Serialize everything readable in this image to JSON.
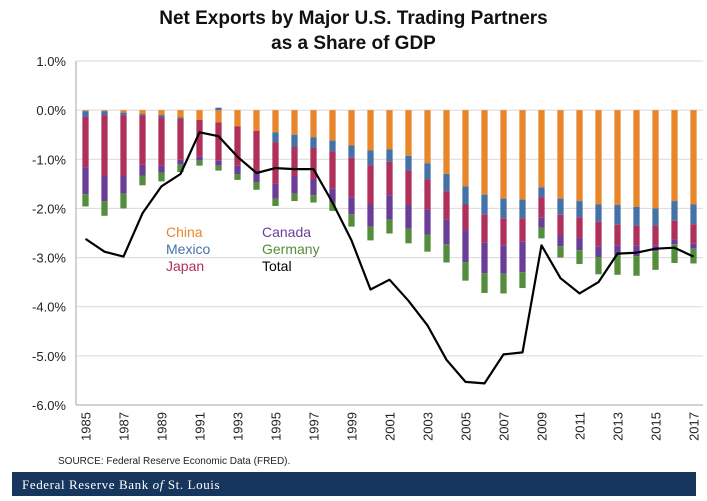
{
  "title_line1": "Net Exports by Major U.S. Trading Partners",
  "title_line2": "as a Share of GDP",
  "source": "SOURCE: Federal Reserve Economic Data (FRED).",
  "footer": {
    "part1": "Federal Reserve Bank ",
    "of": "of",
    "part2": " St. Louis"
  },
  "colors": {
    "China": "#e8862a",
    "Mexico": "#4472a8",
    "Japan": "#b0305c",
    "Canada": "#6a3d99",
    "Germany": "#548d3c",
    "Total": "#000000"
  },
  "chart_data": {
    "type": "bar",
    "stacked": true,
    "title": "Net Exports by Major U.S. Trading Partners as a Share of GDP",
    "ylim": [
      -6.0,
      1.0
    ],
    "yticks": [
      "1.0%",
      "0.0%",
      "-1.0%",
      "-2.0%",
      "-3.0%",
      "-4.0%",
      "-5.0%",
      "-6.0%"
    ],
    "xtick_labels": [
      "1985",
      "1987",
      "1989",
      "1991",
      "1993",
      "1995",
      "1997",
      "1999",
      "2001",
      "2003",
      "2005",
      "2007",
      "2009",
      "2011",
      "2013",
      "2015",
      "2017"
    ],
    "legend_position": "left-center",
    "categories": [
      1985,
      1986,
      1987,
      1988,
      1989,
      1990,
      1991,
      1992,
      1993,
      1994,
      1995,
      1996,
      1997,
      1998,
      1999,
      2000,
      2001,
      2002,
      2003,
      2004,
      2005,
      2006,
      2007,
      2008,
      2009,
      2010,
      2011,
      2012,
      2013,
      2014,
      2015,
      2016,
      2017
    ],
    "series": [
      {
        "name": "China",
        "values": [
          -0.02,
          -0.02,
          -0.05,
          -0.08,
          -0.1,
          -0.15,
          -0.2,
          -0.25,
          -0.33,
          -0.42,
          -0.45,
          -0.5,
          -0.55,
          -0.62,
          -0.72,
          -0.82,
          -0.8,
          -0.93,
          -1.08,
          -1.3,
          -1.55,
          -1.72,
          -1.8,
          -1.82,
          -1.57,
          -1.8,
          -1.85,
          -1.92,
          -1.93,
          -1.97,
          -2.0,
          -1.85,
          -1.92
        ]
      },
      {
        "name": "Mexico",
        "values": [
          -0.12,
          -0.08,
          -0.05,
          -0.03,
          -0.05,
          -0.03,
          0.0,
          0.05,
          0.0,
          0.0,
          -0.2,
          -0.25,
          -0.22,
          -0.22,
          -0.25,
          -0.3,
          -0.25,
          -0.3,
          -0.33,
          -0.35,
          -0.37,
          -0.4,
          -0.4,
          -0.38,
          -0.2,
          -0.33,
          -0.33,
          -0.35,
          -0.4,
          -0.38,
          -0.35,
          -0.4,
          -0.4
        ]
      },
      {
        "name": "Japan",
        "values": [
          -1.02,
          -1.25,
          -1.25,
          -1.0,
          -0.97,
          -0.83,
          -0.75,
          -0.78,
          -0.8,
          -0.85,
          -0.85,
          -0.6,
          -0.63,
          -0.75,
          -0.8,
          -0.8,
          -0.68,
          -0.7,
          -0.62,
          -0.58,
          -0.52,
          -0.58,
          -0.55,
          -0.48,
          -0.42,
          -0.42,
          -0.42,
          -0.5,
          -0.42,
          -0.4,
          -0.4,
          -0.38,
          -0.4
        ]
      },
      {
        "name": "Canada",
        "values": [
          -0.55,
          -0.5,
          -0.35,
          -0.22,
          -0.15,
          -0.1,
          -0.08,
          -0.1,
          -0.17,
          -0.2,
          -0.3,
          -0.35,
          -0.33,
          -0.28,
          -0.35,
          -0.45,
          -0.5,
          -0.48,
          -0.5,
          -0.5,
          -0.65,
          -0.62,
          -0.58,
          -0.62,
          -0.2,
          -0.22,
          -0.25,
          -0.22,
          -0.2,
          -0.22,
          -0.12,
          -0.1,
          -0.1
        ]
      },
      {
        "name": "Germany",
        "values": [
          -0.25,
          -0.3,
          -0.3,
          -0.2,
          -0.18,
          -0.15,
          -0.1,
          -0.1,
          -0.12,
          -0.15,
          -0.15,
          -0.15,
          -0.15,
          -0.18,
          -0.25,
          -0.28,
          -0.28,
          -0.3,
          -0.35,
          -0.37,
          -0.38,
          -0.4,
          -0.4,
          -0.32,
          -0.22,
          -0.23,
          -0.28,
          -0.35,
          -0.4,
          -0.4,
          -0.38,
          -0.38,
          -0.3
        ]
      }
    ],
    "line_series": {
      "name": "Total",
      "values": [
        -2.62,
        -2.88,
        -2.98,
        -2.1,
        -1.55,
        -1.3,
        -0.45,
        -0.53,
        -0.95,
        -1.28,
        -1.18,
        -1.2,
        -1.2,
        -1.88,
        -2.65,
        -3.65,
        -3.45,
        -3.88,
        -4.38,
        -5.08,
        -5.53,
        -5.56,
        -4.97,
        -4.93,
        -2.75,
        -3.42,
        -3.73,
        -3.5,
        -2.92,
        -2.9,
        -2.82,
        -2.8,
        -2.98
      ]
    }
  }
}
